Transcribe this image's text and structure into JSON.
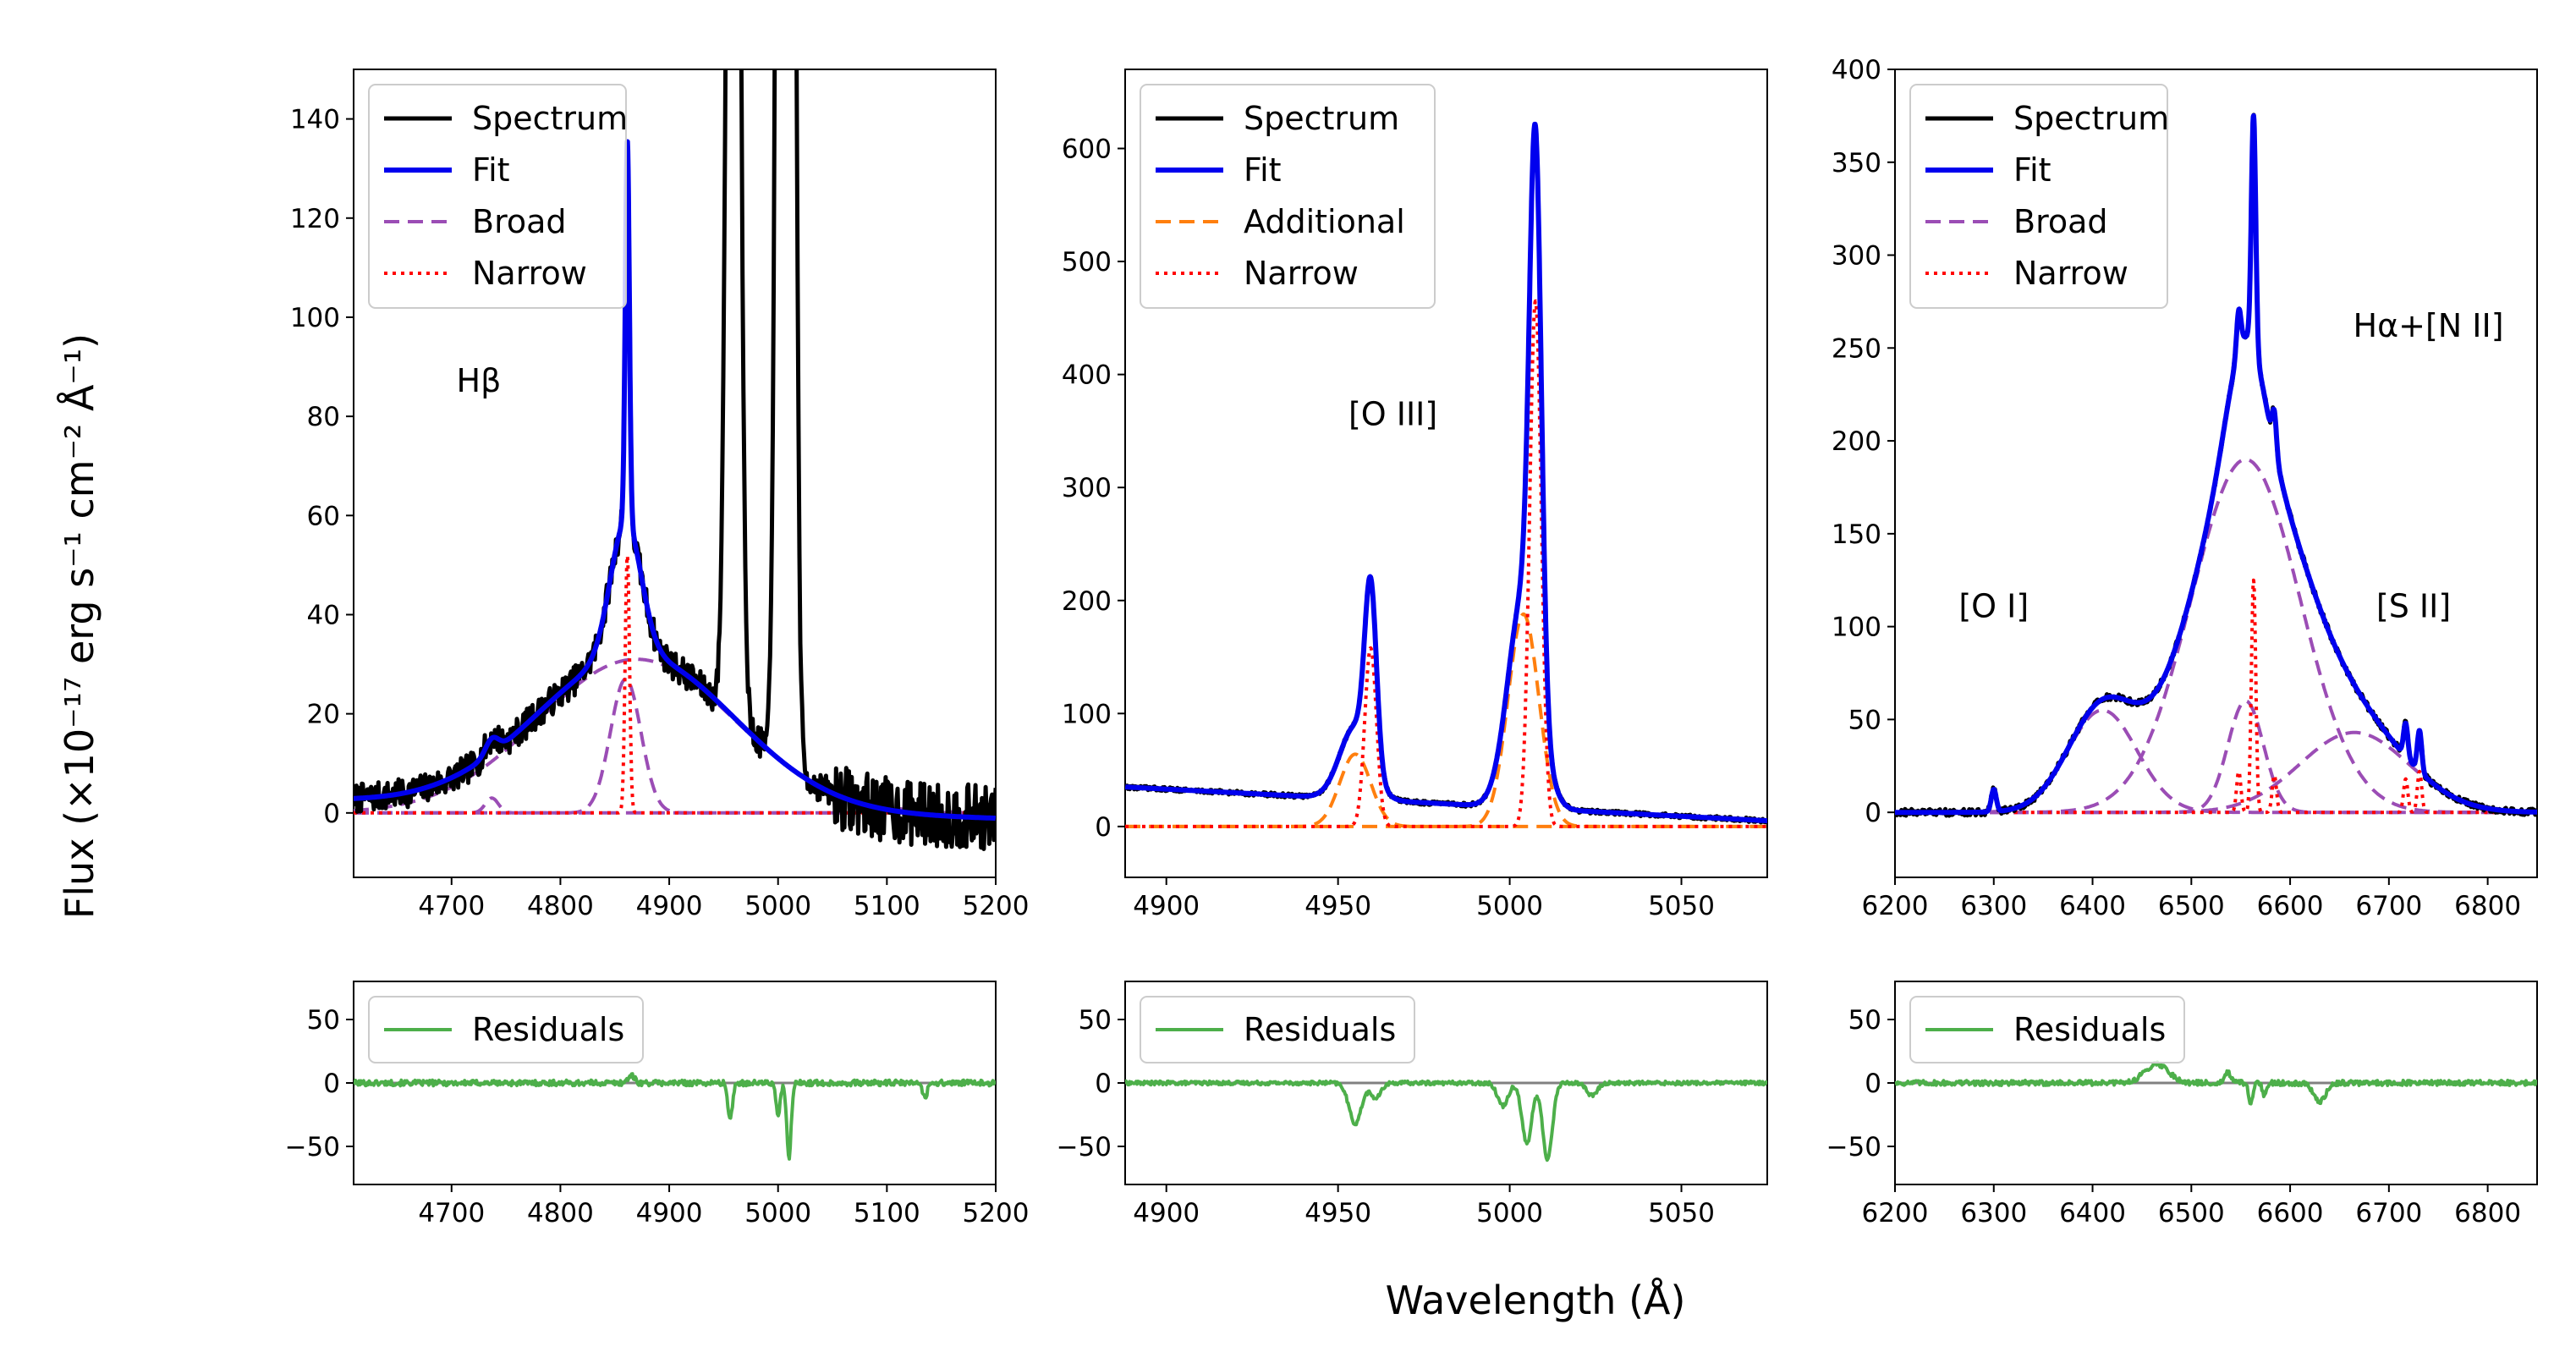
{
  "figure": {
    "ylabel": "Flux (×10⁻¹⁷ erg s⁻¹ cm⁻² Å⁻¹)",
    "xlabel": "Wavelength (Å)"
  },
  "colors": {
    "spectrum": "#000000",
    "fit": "#0000ee",
    "broad": "#9b4db5",
    "additional": "#ff7f0e",
    "narrow": "#ff0000",
    "residuals": "#4daf4a",
    "zero_line": "#808080"
  },
  "chart_data": [
    {
      "id": "hbeta",
      "type": "line",
      "annotations": [
        {
          "text": "Hβ",
          "x": 4725,
          "y": 85
        }
      ],
      "xlim": [
        4610,
        5200
      ],
      "ylim": [
        -13,
        150
      ],
      "xticks": [
        4700,
        4800,
        4900,
        5000,
        5100,
        5200
      ],
      "yticks": [
        0,
        20,
        40,
        60,
        80,
        100,
        120,
        140
      ],
      "legend": [
        "Spectrum",
        "Fit",
        "Broad",
        "Narrow"
      ],
      "legend_styles": [
        "spectrum",
        "fit",
        "broad",
        "narrow"
      ],
      "components": {
        "continuum": {
          "a": 2.5,
          "b": -0.006,
          "x0": 4600
        },
        "broad": [
          {
            "c": 4870,
            "s": 90,
            "a": 31
          },
          {
            "c": 4860,
            "s": 14,
            "a": 27
          },
          {
            "c": 4737,
            "s": 6,
            "a": 3
          }
        ],
        "narrow": [
          {
            "c": 4861.5,
            "s": 2,
            "a": 52
          }
        ],
        "fit_extra": [
          {
            "c": 4861.5,
            "s": 1.6,
            "a": 25
          }
        ],
        "spectrum_extra": [
          {
            "c": 4959,
            "s": 5,
            "a": 380
          },
          {
            "c": 5007,
            "s": 5,
            "a": 1100
          }
        ],
        "noise": 3
      },
      "residual": {
        "ylim": [
          -80,
          80
        ],
        "yticks": [
          -50,
          0,
          50
        ],
        "legend": "Residuals",
        "noise": 2.2,
        "features": [
          {
            "c": 4956,
            "s": 2,
            "a": -30
          },
          {
            "c": 5000,
            "s": 2,
            "a": -25
          },
          {
            "c": 5010,
            "s": 2,
            "a": -60
          },
          {
            "c": 5135,
            "s": 2,
            "a": -12
          },
          {
            "c": 4865,
            "s": 3,
            "a": 6
          }
        ]
      }
    },
    {
      "id": "oiii",
      "type": "line",
      "annotations": [
        {
          "text": "[O III]",
          "x": 4966,
          "y": 355
        }
      ],
      "xlim": [
        4888,
        5075
      ],
      "ylim": [
        -45,
        670
      ],
      "xticks": [
        4900,
        4950,
        5000,
        5050
      ],
      "yticks": [
        0,
        100,
        200,
        300,
        400,
        500,
        600
      ],
      "legend": [
        "Spectrum",
        "Fit",
        "Additional",
        "Narrow"
      ],
      "legend_styles": [
        "spectrum",
        "fit",
        "additional",
        "narrow"
      ],
      "components": {
        "continuum": {
          "a": 35,
          "b": -0.16,
          "x0": 4888
        },
        "additional": [
          {
            "c": 4955,
            "s": 4.5,
            "a": 64
          },
          {
            "c": 5004,
            "s": 4.5,
            "a": 188
          }
        ],
        "narrow": [
          {
            "c": 4959.5,
            "s": 1.7,
            "a": 158
          },
          {
            "c": 5007.5,
            "s": 1.7,
            "a": 465
          }
        ],
        "noise": 1.8
      },
      "residual": {
        "ylim": [
          -80,
          80
        ],
        "yticks": [
          -50,
          0,
          50
        ],
        "legend": "Residuals",
        "noise": 1.5,
        "features": [
          {
            "c": 4955,
            "s": 1.8,
            "a": -32
          },
          {
            "c": 4961,
            "s": 1.5,
            "a": -12
          },
          {
            "c": 4998,
            "s": 1.5,
            "a": -18
          },
          {
            "c": 5005,
            "s": 1.4,
            "a": -48
          },
          {
            "c": 5011,
            "s": 1.4,
            "a": -60
          },
          {
            "c": 5024,
            "s": 1.5,
            "a": -10
          }
        ]
      }
    },
    {
      "id": "halpha",
      "type": "line",
      "annotations": [
        {
          "text": "Hα+[N II]",
          "x": 6740,
          "y": 256
        },
        {
          "text": "[O I]",
          "x": 6300,
          "y": 105
        },
        {
          "text": "[S II]",
          "x": 6725,
          "y": 105
        }
      ],
      "xlim": [
        6200,
        6850
      ],
      "ylim": [
        -35,
        400
      ],
      "xticks": [
        6200,
        6300,
        6400,
        6500,
        6600,
        6700,
        6800
      ],
      "yticks": [
        0,
        50,
        100,
        150,
        200,
        250,
        300,
        350,
        400
      ],
      "legend": [
        "Spectrum",
        "Fit",
        "Broad",
        "Narrow"
      ],
      "legend_styles": [
        "spectrum",
        "fit",
        "broad",
        "narrow"
      ],
      "components": {
        "continuum": {
          "a": 0,
          "b": 0,
          "x0": 6200
        },
        "broad": [
          {
            "c": 6555,
            "s": 55,
            "a": 190
          },
          {
            "c": 6410,
            "s": 35,
            "a": 55
          },
          {
            "c": 6555,
            "s": 18,
            "a": 60
          },
          {
            "c": 6665,
            "s": 55,
            "a": 43
          }
        ],
        "narrow": [
          {
            "c": 6563,
            "s": 2.2,
            "a": 125
          },
          {
            "c": 6548,
            "s": 2.2,
            "a": 22
          },
          {
            "c": 6584,
            "s": 2.2,
            "a": 20
          },
          {
            "c": 6717,
            "s": 2.2,
            "a": 18
          },
          {
            "c": 6731,
            "s": 2.2,
            "a": 22
          },
          {
            "c": 6300,
            "s": 2.5,
            "a": 12
          }
        ],
        "noise": 1.8
      },
      "residual": {
        "ylim": [
          -80,
          80
        ],
        "yticks": [
          -50,
          0,
          50
        ],
        "legend": "Residuals",
        "noise": 2,
        "features": [
          {
            "c": 6465,
            "s": 12,
            "a": 15
          },
          {
            "c": 6537,
            "s": 3,
            "a": 8
          },
          {
            "c": 6560,
            "s": 2,
            "a": -18
          },
          {
            "c": 6574,
            "s": 2,
            "a": -10
          },
          {
            "c": 6630,
            "s": 6,
            "a": -15
          }
        ]
      }
    }
  ]
}
